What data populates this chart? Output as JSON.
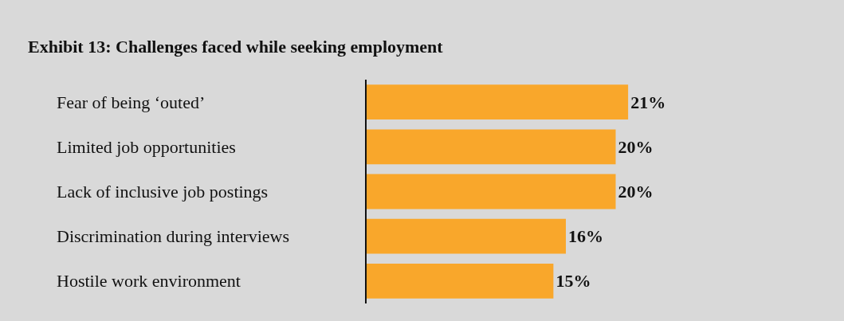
{
  "chart_data": {
    "type": "bar",
    "orientation": "horizontal",
    "title": "Exhibit 13: Challenges faced while seeking employment",
    "categories": [
      "Fear of being ‘outed’",
      "Limited job opportunities",
      "Lack of inclusive job postings",
      "Discrimination during interviews",
      "Hostile work environment"
    ],
    "values": [
      21,
      20,
      20,
      16,
      15
    ],
    "color": "#f9a72b",
    "value_labels": [
      "21%",
      "20%",
      "20%",
      "16%",
      "15%"
    ],
    "grid": false,
    "legend": false
  }
}
